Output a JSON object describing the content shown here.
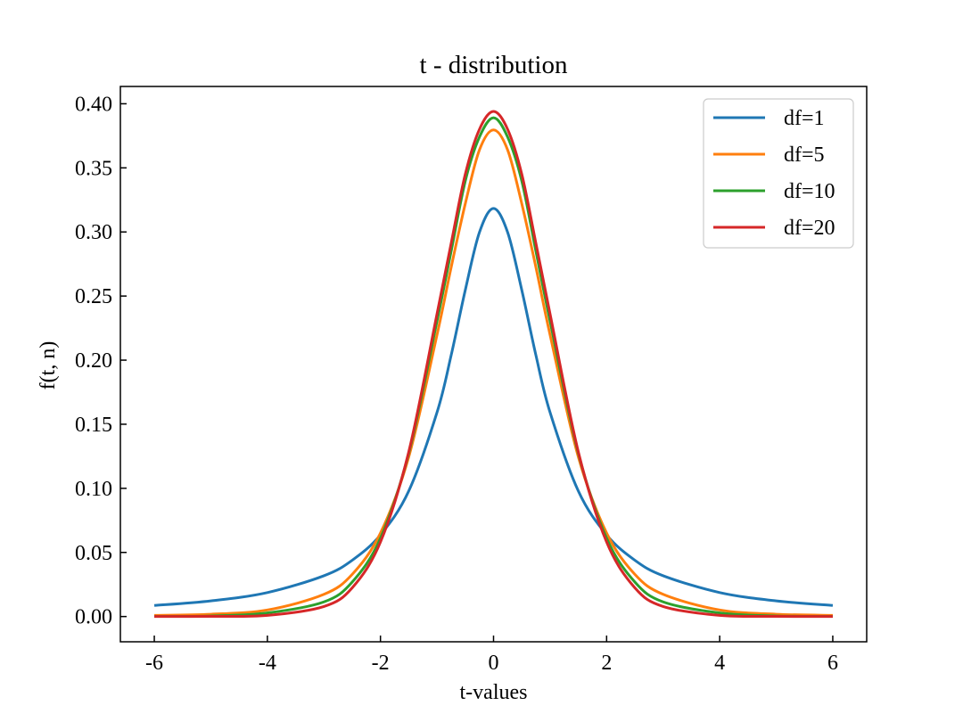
{
  "chart_data": {
    "type": "line",
    "title": "t - distribution",
    "xlabel": "t-values",
    "ylabel": "f(t, n)",
    "xlim": [
      -6.6,
      6.6
    ],
    "ylim": [
      -0.0197,
      0.4135
    ],
    "xticks": [
      -6,
      -4,
      -2,
      0,
      2,
      4,
      6
    ],
    "xtick_labels": [
      "-6",
      "-4",
      "-2",
      "0",
      "2",
      "4",
      "6"
    ],
    "yticks": [
      0.0,
      0.05,
      0.1,
      0.15,
      0.2,
      0.25,
      0.3,
      0.35,
      0.4
    ],
    "ytick_labels": [
      "0.00",
      "0.05",
      "0.10",
      "0.15",
      "0.20",
      "0.25",
      "0.30",
      "0.35",
      "0.40"
    ],
    "grid": false,
    "legend_position": "top-right",
    "x": [
      -6,
      -5,
      -4,
      -3,
      -2.5,
      -2,
      -1.5,
      -1,
      -0.75,
      -0.5,
      -0.25,
      0,
      0.25,
      0.5,
      0.75,
      1,
      1.5,
      2,
      2.5,
      3,
      4,
      5,
      6
    ],
    "series": [
      {
        "name": "df=1",
        "color": "#1f77b4",
        "values": [
          0.0086,
          0.0122,
          0.0187,
          0.0318,
          0.0439,
          0.0637,
          0.0979,
          0.1592,
          0.2037,
          0.2546,
          0.2996,
          0.3183,
          0.2996,
          0.2546,
          0.2037,
          0.1592,
          0.0979,
          0.0637,
          0.0439,
          0.0318,
          0.0187,
          0.0122,
          0.0086
        ]
      },
      {
        "name": "df=5",
        "color": "#ff7f0e",
        "values": [
          0.0009,
          0.0018,
          0.0051,
          0.0173,
          0.0329,
          0.0651,
          0.1245,
          0.2197,
          0.2723,
          0.322,
          0.3639,
          0.3796,
          0.3639,
          0.322,
          0.2723,
          0.2197,
          0.1245,
          0.0651,
          0.0329,
          0.0173,
          0.0051,
          0.0018,
          0.0009
        ]
      },
      {
        "name": "df=10",
        "color": "#2ca02c",
        "values": [
          0.0001,
          0.0004,
          0.0028,
          0.0114,
          0.0269,
          0.0611,
          0.1274,
          0.2304,
          0.2849,
          0.3397,
          0.374,
          0.3891,
          0.374,
          0.3397,
          0.2849,
          0.2304,
          0.1274,
          0.0611,
          0.0269,
          0.0114,
          0.0028,
          0.0004,
          0.0001
        ]
      },
      {
        "name": "df=20",
        "color": "#d62728",
        "values": [
          0.0,
          0.0001,
          0.0009,
          0.0078,
          0.0224,
          0.0581,
          0.1284,
          0.236,
          0.291,
          0.345,
          0.38,
          0.394,
          0.38,
          0.345,
          0.291,
          0.236,
          0.1284,
          0.0581,
          0.0224,
          0.0078,
          0.0009,
          0.0001,
          0.0
        ]
      }
    ]
  }
}
